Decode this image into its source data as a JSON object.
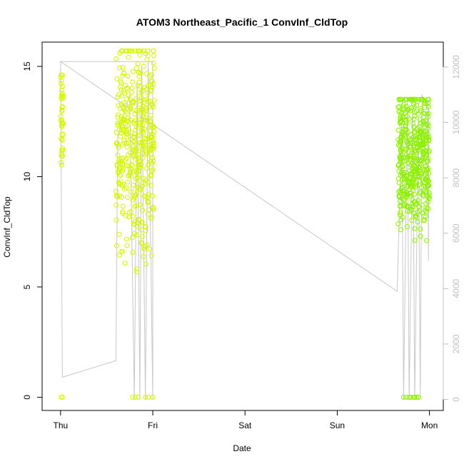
{
  "chart_data": {
    "type": "scatter",
    "title": "ATOM3 Northeast_Pacific_1 ConvInf_CldTop",
    "xlabel": "Date",
    "ylabel": "ConvInf_CldTop",
    "x_ticks": [
      "Thu",
      "Fri",
      "Sat",
      "Sun",
      "Mon"
    ],
    "x_range_days": [
      -0.2,
      4.15
    ],
    "y_left_ticks": [
      "0",
      "5",
      "10",
      "15"
    ],
    "y_left_range": [
      -0.6,
      16.1
    ],
    "y_right_ticks": [
      "0",
      "2000",
      "4000",
      "6000",
      "8000",
      "10000",
      "12000"
    ],
    "y_right_range": [
      -400,
      12900
    ],
    "grid": false,
    "legend": "none",
    "colors": {
      "scatter_yellow": "#d4f500",
      "scatter_green": "#8ef000",
      "line": "#c8c8c8",
      "axis": "#000000",
      "right_axis": "#c0c0c0"
    },
    "series": [
      {
        "clusters": [
          {
            "day_range": [
              0.0,
              0.03
            ],
            "y_range": [
              8.5,
              14.6
            ],
            "n": 40,
            "zeros": [
              0.005,
              0.02
            ],
            "color": "yellow"
          },
          {
            "day_range": [
              0.6,
              1.02
            ],
            "y_range": [
              5.5,
              15.7
            ],
            "n": 420,
            "zeros": [
              0.78,
              0.81,
              0.84,
              0.92,
              0.95,
              1.0
            ],
            "color": "yellow"
          },
          {
            "day_range": [
              3.66,
              4.0
            ],
            "y_range": [
              6.0,
              13.5
            ],
            "n": 450,
            "zeros": [
              3.72,
              3.75,
              3.78,
              3.8,
              3.83,
              3.84,
              3.86,
              3.88
            ],
            "color": "green"
          }
        ]
      },
      {
        "points": [
          [
            0.0,
            12200
          ],
          [
            0.02,
            800
          ],
          [
            0.6,
            1400
          ],
          [
            0.62,
            9500
          ],
          [
            0.66,
            10000
          ],
          [
            0.75,
            11000
          ],
          [
            0.8,
            0
          ],
          [
            0.83,
            11500
          ],
          [
            0.86,
            0
          ],
          [
            0.88,
            12000
          ],
          [
            0.92,
            0
          ],
          [
            0.95,
            12200
          ],
          [
            1.0,
            0
          ],
          [
            1.0,
            12200
          ],
          [
            0.0,
            12200
          ],
          [
            3.65,
            3900
          ],
          [
            3.7,
            10000
          ],
          [
            3.72,
            0
          ],
          [
            3.76,
            10800
          ],
          [
            3.78,
            0
          ],
          [
            3.82,
            10500
          ],
          [
            3.84,
            0
          ],
          [
            3.88,
            10200
          ],
          [
            3.9,
            0
          ],
          [
            3.92,
            11000
          ],
          [
            3.93,
            10800
          ],
          [
            3.98,
            10700
          ],
          [
            3.99,
            5000
          ],
          [
            3.99,
            10800
          ]
        ]
      }
    ]
  }
}
